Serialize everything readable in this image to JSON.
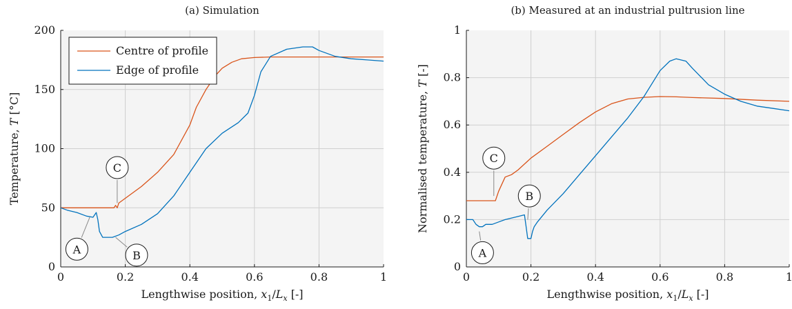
{
  "chart_data": [
    {
      "type": "line",
      "title": "(a) Simulation",
      "xlabel_main": "Lengthwise position, ",
      "xlabel_var": "x",
      "xlabel_sub": "1",
      "xlabel_mid": "/",
      "xlabel_var2": "L",
      "xlabel_sub2": "x",
      "xlabel_unit": " [-]",
      "ylabel_main": "Temperature, ",
      "ylabel_var": "T",
      "ylabel_unit": " [°C]",
      "xlim": [
        0,
        1
      ],
      "ylim": [
        0,
        200
      ],
      "xticks": [
        0,
        0.2,
        0.4,
        0.6,
        0.8,
        1
      ],
      "xtick_labels": [
        "0",
        "0.2",
        "0.4",
        "0.6",
        "0.8",
        "1"
      ],
      "yticks": [
        0,
        50,
        100,
        150,
        200
      ],
      "ytick_labels": [
        "0",
        "50",
        "100",
        "150",
        "200"
      ],
      "grid": true,
      "legend": "top-left",
      "series": [
        {
          "name": "Centre of profile",
          "color": "#d95319",
          "x": [
            0,
            0.05,
            0.1,
            0.15,
            0.165,
            0.17,
            0.175,
            0.18,
            0.2,
            0.25,
            0.3,
            0.35,
            0.4,
            0.42,
            0.45,
            0.48,
            0.5,
            0.53,
            0.56,
            0.6,
            0.65,
            0.7,
            0.8,
            0.9,
            1
          ],
          "y": [
            50,
            50,
            50,
            50,
            50,
            52,
            50,
            54,
            58,
            68,
            80,
            95,
            120,
            135,
            150,
            162,
            168,
            173,
            176,
            177,
            177.5,
            177.5,
            177.5,
            177.5,
            177.5
          ]
        },
        {
          "name": "Edge of profile",
          "color": "#0072bd",
          "x": [
            0,
            0.02,
            0.05,
            0.08,
            0.1,
            0.11,
            0.115,
            0.12,
            0.13,
            0.14,
            0.16,
            0.18,
            0.2,
            0.25,
            0.3,
            0.35,
            0.4,
            0.45,
            0.5,
            0.55,
            0.58,
            0.6,
            0.62,
            0.65,
            0.7,
            0.75,
            0.78,
            0.8,
            0.85,
            0.9,
            0.95,
            1
          ],
          "y": [
            50,
            48,
            46,
            43,
            42,
            46,
            40,
            30,
            25,
            25,
            25,
            27,
            30,
            36,
            45,
            60,
            80,
            100,
            113,
            122,
            130,
            145,
            165,
            178,
            184,
            186,
            186,
            183,
            178,
            176,
            175,
            174
          ]
        }
      ],
      "annotations": [
        {
          "label": "A",
          "x": 0.05,
          "y": 15,
          "tx": 0.09,
          "ty": 42
        },
        {
          "label": "B",
          "x": 0.235,
          "y": 10,
          "tx": 0.17,
          "ty": 25
        },
        {
          "label": "C",
          "x": 0.175,
          "y": 84,
          "tx": 0.175,
          "ty": 54
        }
      ]
    },
    {
      "type": "line",
      "title": "(b) Measured at an industrial pultrusion line",
      "xlabel_main": "Lengthwise position, ",
      "xlabel_var": "x",
      "xlabel_sub": "1",
      "xlabel_mid": "/",
      "xlabel_var2": "L",
      "xlabel_sub2": "x",
      "xlabel_unit": " [-]",
      "ylabel_main": "Normalised temperature, ",
      "ylabel_var": "T",
      "ylabel_unit": " [-]",
      "xlim": [
        0,
        1
      ],
      "ylim": [
        0,
        1
      ],
      "xticks": [
        0,
        0.2,
        0.4,
        0.6,
        0.8,
        1
      ],
      "xtick_labels": [
        "0",
        "0.2",
        "0.4",
        "0.6",
        "0.8",
        "1"
      ],
      "yticks": [
        0,
        0.2,
        0.4,
        0.6,
        0.8,
        1
      ],
      "ytick_labels": [
        "0",
        "0.2",
        "0.4",
        "0.6",
        "0.8",
        "1"
      ],
      "grid": true,
      "series": [
        {
          "color": "#d95319",
          "x": [
            0,
            0.05,
            0.09,
            0.1,
            0.12,
            0.14,
            0.16,
            0.2,
            0.25,
            0.3,
            0.35,
            0.4,
            0.45,
            0.5,
            0.55,
            0.6,
            0.65,
            0.7,
            0.8,
            0.9,
            1
          ],
          "y": [
            0.28,
            0.28,
            0.28,
            0.32,
            0.38,
            0.39,
            0.41,
            0.46,
            0.51,
            0.56,
            0.61,
            0.655,
            0.69,
            0.71,
            0.717,
            0.72,
            0.719,
            0.716,
            0.712,
            0.705,
            0.7
          ]
        },
        {
          "color": "#0072bd",
          "x": [
            0,
            0.02,
            0.03,
            0.04,
            0.05,
            0.06,
            0.08,
            0.1,
            0.12,
            0.15,
            0.18,
            0.185,
            0.19,
            0.2,
            0.205,
            0.21,
            0.22,
            0.25,
            0.3,
            0.35,
            0.4,
            0.45,
            0.5,
            0.55,
            0.6,
            0.63,
            0.65,
            0.68,
            0.7,
            0.75,
            0.8,
            0.85,
            0.9,
            0.95,
            1
          ],
          "y": [
            0.2,
            0.2,
            0.18,
            0.17,
            0.17,
            0.18,
            0.18,
            0.19,
            0.2,
            0.21,
            0.22,
            0.17,
            0.12,
            0.12,
            0.15,
            0.17,
            0.19,
            0.24,
            0.31,
            0.39,
            0.47,
            0.55,
            0.63,
            0.72,
            0.83,
            0.87,
            0.88,
            0.87,
            0.84,
            0.77,
            0.73,
            0.7,
            0.68,
            0.67,
            0.66
          ]
        }
      ],
      "annotations": [
        {
          "label": "A",
          "x": 0.05,
          "y": 0.06,
          "tx": 0.04,
          "ty": 0.15
        },
        {
          "label": "B",
          "x": 0.195,
          "y": 0.3,
          "tx": 0.19,
          "ty": 0.2
        },
        {
          "label": "C",
          "x": 0.085,
          "y": 0.46,
          "tx": 0.085,
          "ty": 0.3
        }
      ]
    }
  ]
}
